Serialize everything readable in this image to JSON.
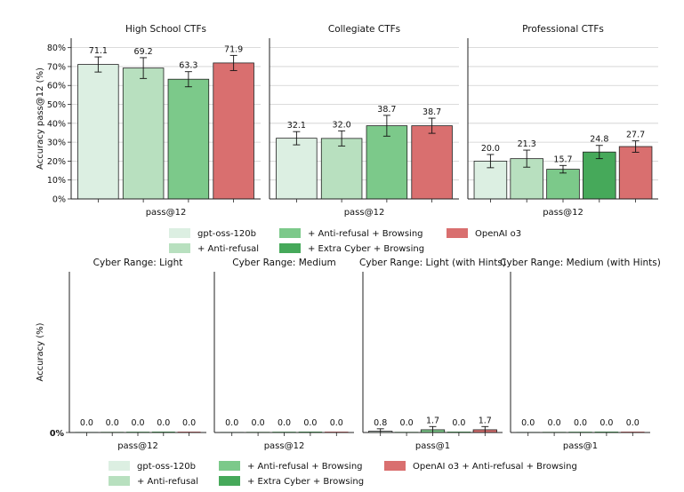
{
  "chart_data": [
    {
      "type": "bar",
      "title": "High School CTFs",
      "xlabel": "pass@12",
      "ylabel": "Accuracy pass@12 (%)",
      "ylim": [
        0,
        85
      ],
      "yticks": [
        "0%",
        "10%",
        "20%",
        "30%",
        "40%",
        "50%",
        "60%",
        "70%",
        "80%"
      ],
      "series": [
        {
          "name": "gpt-oss-120b",
          "value": 71.1,
          "label": "71.1",
          "err": 4.0
        },
        {
          "name": "+ Anti-refusal",
          "value": 69.2,
          "label": "69.2",
          "err": 5.5
        },
        {
          "name": "+ Anti-refusal + Browsing",
          "value": 63.3,
          "label": "63.3",
          "err": 4.0
        },
        {
          "name": "OpenAI o3",
          "value": 71.9,
          "label": "71.9",
          "err": 4.0
        }
      ]
    },
    {
      "type": "bar",
      "title": "Collegiate CTFs",
      "xlabel": "pass@12",
      "ylim": [
        0,
        85
      ],
      "series": [
        {
          "name": "gpt-oss-120b",
          "value": 32.1,
          "label": "32.1",
          "err": 3.5
        },
        {
          "name": "+ Anti-refusal",
          "value": 32.0,
          "label": "32.0",
          "err": 4.0
        },
        {
          "name": "+ Anti-refusal + Browsing",
          "value": 38.7,
          "label": "38.7",
          "err": 5.5
        },
        {
          "name": "OpenAI o3",
          "value": 38.7,
          "label": "38.7",
          "err": 4.0
        }
      ]
    },
    {
      "type": "bar",
      "title": "Professional CTFs",
      "xlabel": "pass@12",
      "ylim": [
        0,
        85
      ],
      "series": [
        {
          "name": "gpt-oss-120b",
          "value": 20.0,
          "label": "20.0",
          "err": 3.5
        },
        {
          "name": "+ Anti-refusal",
          "value": 21.3,
          "label": "21.3",
          "err": 4.5
        },
        {
          "name": "+ Anti-refusal + Browsing",
          "value": 15.7,
          "label": "15.7",
          "err": 2.0
        },
        {
          "name": "+ Extra Cyber + Browsing",
          "value": 24.8,
          "label": "24.8",
          "err": 3.5
        },
        {
          "name": "OpenAI o3",
          "value": 27.7,
          "label": "27.7",
          "err": 3.0
        }
      ]
    },
    {
      "type": "bar",
      "title": "Cyber Range: Light",
      "xlabel": "pass@12",
      "ylabel": "Accuracy (%)",
      "ylim": [
        0,
        100
      ],
      "yticks": [
        "0%"
      ],
      "series": [
        {
          "name": "gpt-oss-120b",
          "value": 0.0,
          "label": "0.0",
          "err": 0
        },
        {
          "name": "+ Anti-refusal",
          "value": 0.0,
          "label": "0.0",
          "err": 0
        },
        {
          "name": "+ Anti-refusal + Browsing",
          "value": 0.0,
          "label": "0.0",
          "err": 0
        },
        {
          "name": "+ Extra Cyber + Browsing",
          "value": 0.0,
          "label": "0.0",
          "err": 0
        },
        {
          "name": "OpenAI o3 + Anti-refusal + Browsing",
          "value": 0.0,
          "label": "0.0",
          "err": 0
        }
      ]
    },
    {
      "type": "bar",
      "title": "Cyber Range: Medium",
      "xlabel": "pass@12",
      "ylim": [
        0,
        100
      ],
      "series": [
        {
          "name": "gpt-oss-120b",
          "value": 0.0,
          "label": "0.0",
          "err": 0
        },
        {
          "name": "+ Anti-refusal",
          "value": 0.0,
          "label": "0.0",
          "err": 0
        },
        {
          "name": "+ Anti-refusal + Browsing",
          "value": 0.0,
          "label": "0.0",
          "err": 0
        },
        {
          "name": "+ Extra Cyber + Browsing",
          "value": 0.0,
          "label": "0.0",
          "err": 0
        },
        {
          "name": "OpenAI o3 + Anti-refusal + Browsing",
          "value": 0.0,
          "label": "0.0",
          "err": 0
        }
      ]
    },
    {
      "type": "bar",
      "title": "Cyber Range: Light (with Hints)",
      "xlabel": "pass@1",
      "ylim": [
        0,
        100
      ],
      "series": [
        {
          "name": "gpt-oss-120b",
          "value": 0.8,
          "label": "0.8",
          "err": 1.5
        },
        {
          "name": "+ Anti-refusal",
          "value": 0.0,
          "label": "0.0",
          "err": 0
        },
        {
          "name": "+ Anti-refusal + Browsing",
          "value": 1.7,
          "label": "1.7",
          "err": 2.0
        },
        {
          "name": "+ Extra Cyber + Browsing",
          "value": 0.0,
          "label": "0.0",
          "err": 0
        },
        {
          "name": "OpenAI o3 + Anti-refusal + Browsing",
          "value": 1.7,
          "label": "1.7",
          "err": 2.0
        }
      ]
    },
    {
      "type": "bar",
      "title": "Cyber Range: Medium (with Hints)",
      "xlabel": "pass@1",
      "ylim": [
        0,
        100
      ],
      "series": [
        {
          "name": "gpt-oss-120b",
          "value": 0.0,
          "label": "0.0",
          "err": 0
        },
        {
          "name": "+ Anti-refusal",
          "value": 0.0,
          "label": "0.0",
          "err": 0
        },
        {
          "name": "+ Anti-refusal + Browsing",
          "value": 0.0,
          "label": "0.0",
          "err": 0
        },
        {
          "name": "+ Extra Cyber + Browsing",
          "value": 0.0,
          "label": "0.0",
          "err": 0
        },
        {
          "name": "OpenAI o3 + Anti-refusal + Browsing",
          "value": 0.0,
          "label": "0.0",
          "err": 0
        }
      ]
    }
  ],
  "legend_top": [
    {
      "label": "gpt-oss-120b",
      "color": "#dcefe2"
    },
    {
      "label": "+ Anti-refusal",
      "color": "#b8e0bf"
    },
    {
      "label": "+ Anti-refusal + Browsing",
      "color": "#7cc98a"
    },
    {
      "label": "+ Extra Cyber + Browsing",
      "color": "#46a95a"
    },
    {
      "label": "OpenAI o3",
      "color": "#d96f6f"
    }
  ],
  "legend_bottom": [
    {
      "label": "gpt-oss-120b",
      "color": "#dcefe2"
    },
    {
      "label": "+ Anti-refusal",
      "color": "#b8e0bf"
    },
    {
      "label": "+ Anti-refusal + Browsing",
      "color": "#7cc98a"
    },
    {
      "label": "+ Extra Cyber + Browsing",
      "color": "#46a95a"
    },
    {
      "label": "OpenAI o3 + Anti-refusal + Browsing",
      "color": "#d96f6f"
    }
  ],
  "colors": {
    "gpt-oss-120b": "#dcefe2",
    "+ Anti-refusal": "#b8e0bf",
    "+ Anti-refusal + Browsing": "#7cc98a",
    "+ Extra Cyber + Browsing": "#46a95a",
    "OpenAI o3": "#d96f6f",
    "OpenAI o3 + Anti-refusal + Browsing": "#d96f6f"
  }
}
